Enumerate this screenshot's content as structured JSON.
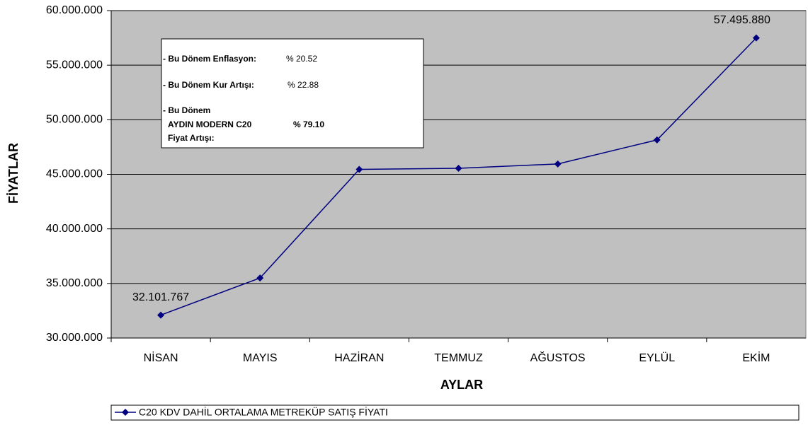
{
  "chart_data": {
    "type": "line",
    "x_label": "AYLAR",
    "y_label": "FİYATLAR",
    "categories": [
      "NİSAN",
      "MAYIS",
      "HAZİRAN",
      "TEMMUZ",
      "AĞUSTOS",
      "EYLÜL",
      "EKİM"
    ],
    "series": [
      {
        "name": "C20 KDV DAHİL ORTALAMA METREKÜP SATIŞ FİYATI",
        "color": "#000080",
        "values": [
          32101767,
          35500000,
          45450000,
          45550000,
          45950000,
          48150000,
          57495880
        ],
        "value_labels": [
          "32.101.767",
          null,
          null,
          null,
          null,
          null,
          "57.495.880"
        ]
      }
    ],
    "ylim": [
      30000000,
      60000000
    ],
    "yticks": [
      {
        "value": 30000000,
        "label": "30.000.000"
      },
      {
        "value": 35000000,
        "label": "35.000.000"
      },
      {
        "value": 40000000,
        "label": "40.000.000"
      },
      {
        "value": 45000000,
        "label": "45.000.000"
      },
      {
        "value": 50000000,
        "label": "50.000.000"
      },
      {
        "value": 55000000,
        "label": "55.000.000"
      },
      {
        "value": 60000000,
        "label": "60.000.000"
      }
    ],
    "grid": true,
    "legend": "bottom",
    "annotation_box": [
      "- Bu Dönem Enflasyon:",
      "% 20.52",
      "- Bu Dönem Kur Artışı:",
      "% 22.88",
      "- Bu Dönem",
      "AYDIN MODERN C20",
      "% 79.10",
      "Fiyat Artışı:"
    ]
  }
}
